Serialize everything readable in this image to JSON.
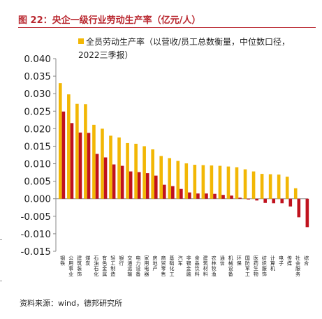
{
  "title": "图 22：央企一级行业劳动生产率（亿元/人）",
  "source": "资料来源：wind，德邦研究所",
  "colors": {
    "title": "#b9262e",
    "series_a": "#f2b705",
    "series_b": "#c0121e",
    "axis": "#888888"
  },
  "chart_data": {
    "type": "bar",
    "legend": "全员劳动生产率（以营收/员工总数衡量，中位数口径，2022三季报）",
    "legend_position": "top",
    "grid": false,
    "ylim": [
      -0.015,
      0.04
    ],
    "yticks": [
      "0.040",
      "0.035",
      "0.030",
      "0.025",
      "0.020",
      "0.015",
      "0.010",
      "0.005",
      "0.000",
      "-0.005",
      "-0.010",
      "-0.015"
    ],
    "categories": [
      "钢铁",
      "公用事业",
      "建筑装饰",
      "煤炭",
      "石油石化",
      "有色金属",
      "轻工制造",
      "银行",
      "交通运输",
      "电力设备",
      "家用电器",
      "房地产",
      "商贸零售",
      "基础化工",
      "汽车",
      "非银金融",
      "食品饮料",
      "建筑材料",
      "农林牧渔",
      "通信",
      "机械设备",
      "环保",
      "国防军工",
      "医药生物",
      "纺织服饰",
      "计算机",
      "电子",
      "传媒",
      "社会服务",
      "综合"
    ],
    "series": [
      {
        "values": [
          0.033,
          0.0298,
          0.0271,
          0.027,
          0.0211,
          0.02,
          0.018,
          0.0175,
          0.0159,
          0.0157,
          0.015,
          0.0141,
          0.0122,
          0.0116,
          0.0108,
          0.0101,
          0.0097,
          0.0096,
          0.0095,
          0.0094,
          0.0092,
          0.009,
          0.0084,
          0.0078,
          0.0071,
          0.007,
          0.0069,
          0.0063,
          0.003,
          0.0
        ]
      },
      {
        "values": [
          0.0249,
          0.0216,
          0.0189,
          0.0188,
          0.0128,
          0.0118,
          0.0098,
          0.0094,
          0.0078,
          0.0076,
          0.0073,
          0.0066,
          0.004,
          0.0036,
          0.0028,
          0.0018,
          0.0015,
          0.0015,
          0.0014,
          0.0011,
          0.0009,
          0.0003,
          -0.0002,
          -0.0005,
          -0.0012,
          -0.0013,
          -0.0013,
          -0.0022,
          -0.0053,
          -0.0081
        ]
      }
    ]
  }
}
